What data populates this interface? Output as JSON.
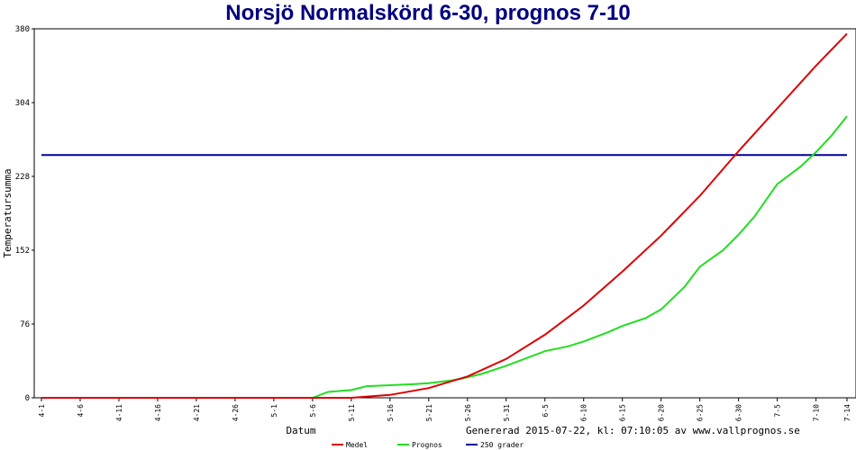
{
  "colors": {
    "medel": "#dd0000",
    "prognos": "#22dd22",
    "threshold": "#000099",
    "title": "#000080"
  },
  "chart_data": {
    "type": "line",
    "title": "Norsjö Normalskörd 6-30, prognos 7-10",
    "ylabel": "Temperatursumma",
    "xlabel": "Datum",
    "footer": "Genererad 2015-07-22, kl: 07:10:05 av www.vallprognos.se",
    "ylim": [
      0,
      380
    ],
    "yticks": [
      0,
      76,
      152,
      228,
      304,
      380
    ],
    "xticks": [
      "4-1",
      "4-6",
      "4-11",
      "4-16",
      "4-21",
      "4-26",
      "5-1",
      "5-6",
      "5-11",
      "5-16",
      "5-21",
      "5-26",
      "5-31",
      "6-5",
      "6-10",
      "6-15",
      "6-20",
      "6-25",
      "6-30",
      "7-5",
      "7-10",
      "7-14"
    ],
    "grid": false,
    "legend_position": "bottom",
    "threshold": {
      "name": "250 grader",
      "value": 250
    },
    "series": [
      {
        "name": "Medel",
        "x": [
          "4-1",
          "5-6",
          "5-11",
          "5-16",
          "5-21",
          "5-26",
          "5-31",
          "6-5",
          "6-10",
          "6-15",
          "6-20",
          "6-25",
          "6-30",
          "7-5",
          "7-10",
          "7-14"
        ],
        "values": [
          0,
          0,
          0,
          3,
          10,
          22,
          40,
          65,
          95,
          130,
          167,
          208,
          254,
          298,
          342,
          375
        ]
      },
      {
        "name": "Prognos",
        "x": [
          "4-1",
          "5-6",
          "5-8",
          "5-11",
          "5-13",
          "5-16",
          "5-19",
          "5-21",
          "5-24",
          "5-26",
          "5-28",
          "5-31",
          "6-3",
          "6-5",
          "6-8",
          "6-10",
          "6-13",
          "6-15",
          "6-18",
          "6-20",
          "6-23",
          "6-25",
          "6-28",
          "6-30",
          "7-2",
          "7-5",
          "7-8",
          "7-10",
          "7-12",
          "7-14"
        ],
        "values": [
          0,
          0,
          6,
          8,
          12,
          13,
          14,
          15,
          18,
          21,
          25,
          33,
          42,
          48,
          53,
          58,
          67,
          74,
          82,
          91,
          114,
          135,
          152,
          168,
          186,
          220,
          238,
          253,
          270,
          290
        ]
      }
    ]
  }
}
